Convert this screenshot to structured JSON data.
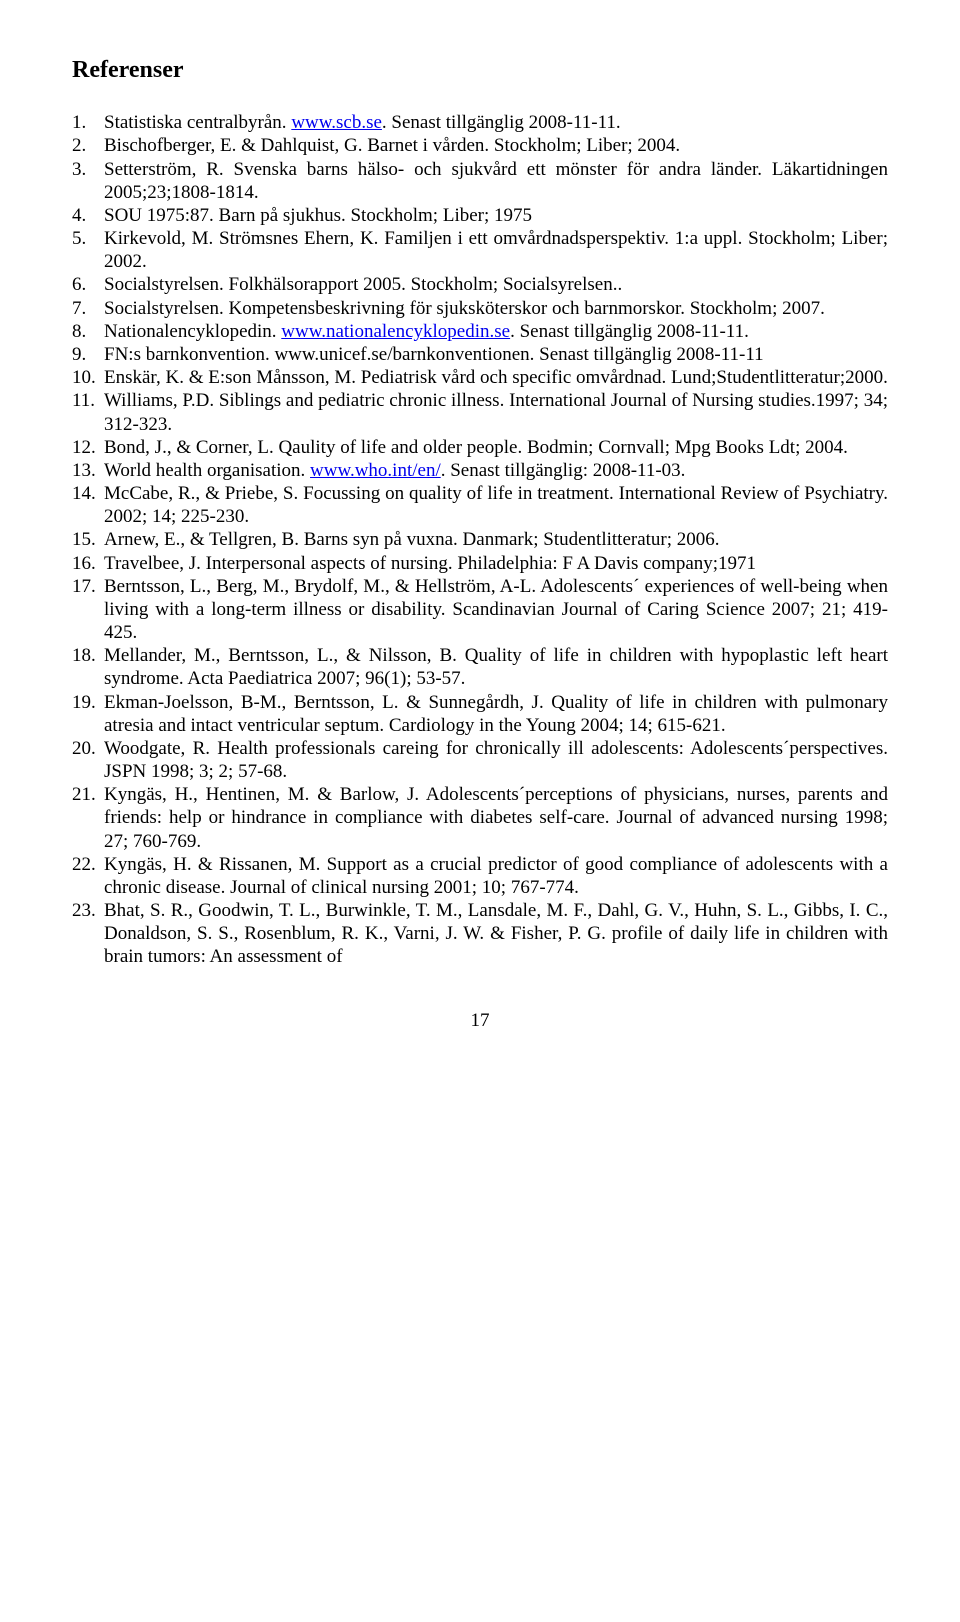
{
  "heading": "Referenser",
  "references": [
    {
      "pre": "Statistiska centralbyrån. ",
      "link": "www.scb.se",
      "post": ". Senast tillgänglig 2008-11-11."
    },
    {
      "pre": "Bischofberger, E. & Dahlquist, G. Barnet i vården. Stockholm; Liber; 2004."
    },
    {
      "pre": "Setterström, R. Svenska barns hälso- och sjukvård ett mönster för andra länder. Läkartidningen 2005;23;1808-1814."
    },
    {
      "pre": "SOU 1975:87. Barn på sjukhus. Stockholm; Liber; 1975"
    },
    {
      "pre": "Kirkevold, M. Strömsnes Ehern, K. Familjen i ett omvårdnadsperspektiv. 1:a uppl. Stockholm; Liber; 2002."
    },
    {
      "pre": "Socialstyrelsen. Folkhälsorapport 2005. Stockholm; Socialsyrelsen.."
    },
    {
      "pre": "Socialstyrelsen. Kompetensbeskrivning för sjuksköterskor och barnmorskor. Stockholm; 2007."
    },
    {
      "pre": "Nationalencyklopedin. ",
      "link": "www.nationalencyklopedin.se",
      "post": ". Senast tillgänglig 2008-11-11."
    },
    {
      "pre": "FN:s barnkonvention. www.unicef.se/barnkonventionen. Senast tillgänglig 2008-11-11"
    },
    {
      "pre": "Enskär, K. & E:son Månsson, M. Pediatrisk vård och specific omvårdnad. Lund;Studentlitteratur;2000."
    },
    {
      "pre": "Williams, P.D. Siblings and pediatric chronic illness. International Journal of Nursing studies.1997; 34; 312-323."
    },
    {
      "pre": "Bond, J., & Corner, L. Qaulity of life and older people. Bodmin; Cornvall; Mpg Books Ldt; 2004."
    },
    {
      "pre": "World health organisation. ",
      "link": "www.who.int/en/",
      "post": ". Senast tillgänglig: 2008-11-03."
    },
    {
      "pre": "McCabe, R., & Priebe, S. Focussing on quality of life in treatment. International Review of Psychiatry. 2002; 14; 225-230."
    },
    {
      "pre": "Arnew, E., & Tellgren, B. Barns syn på vuxna. Danmark; Studentlitteratur; 2006."
    },
    {
      "pre": "Travelbee, J. Interpersonal aspects of nursing. Philadelphia: F A Davis company;1971"
    },
    {
      "pre": "Berntsson, L., Berg, M., Brydolf, M., & Hellström, A-L. Adolescents´ experiences of well-being when living with a long-term illness or disability. Scandinavian Journal of Caring Science 2007; 21; 419-425."
    },
    {
      "pre": "Mellander, M., Berntsson, L., & Nilsson, B. Quality of life in children with hypoplastic left heart syndrome. Acta Paediatrica 2007; 96(1); 53-57."
    },
    {
      "pre": "Ekman-Joelsson, B-M., Berntsson, L. & Sunnegårdh, J. Quality of life in children with pulmonary atresia and intact ventricular septum. Cardiology in the Young 2004; 14; 615-621."
    },
    {
      "pre": "Woodgate, R. Health professionals careing for chronically ill adolescents: Adolescents´perspectives. JSPN 1998; 3; 2; 57-68."
    },
    {
      "pre": "Kyngäs, H., Hentinen, M. & Barlow, J. Adolescents´perceptions of physicians, nurses, parents and friends: help or hindrance in compliance with diabetes self-care. Journal of advanced nursing 1998; 27; 760-769."
    },
    {
      "pre": "Kyngäs, H. & Rissanen, M. Support as a crucial predictor of good compliance of adolescents with a chronic disease. Journal of clinical nursing 2001; 10; 767-774."
    },
    {
      "pre": "Bhat, S. R., Goodwin, T. L., Burwinkle, T. M., Lansdale, M. F., Dahl, G. V., Huhn, S. L., Gibbs, I. C., Donaldson, S. S., Rosenblum, R. K., Varni, J. W. & Fisher, P. G. profile of daily life in children with brain tumors: An assessment of"
    }
  ],
  "page_number": "17"
}
